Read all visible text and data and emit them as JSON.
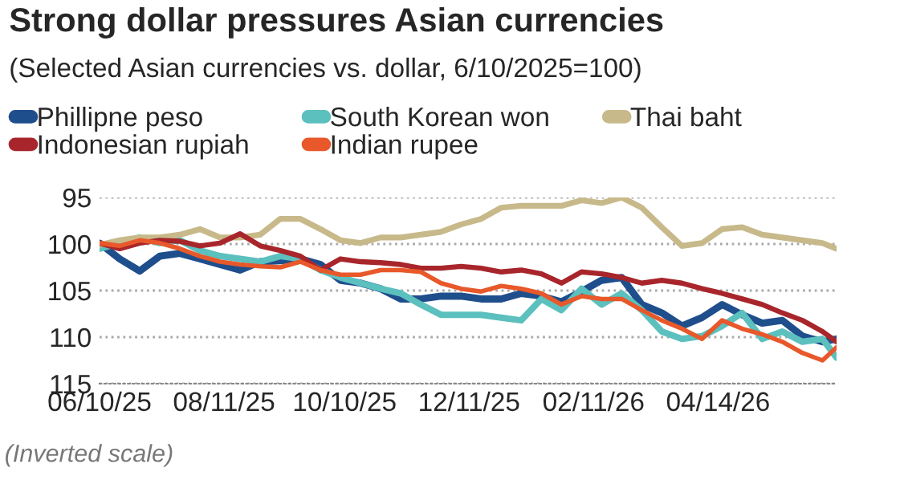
{
  "chart_data": {
    "type": "line",
    "title": "Strong dollar pressures Asian currencies",
    "subtitle": "(Selected Asian currencies vs. dollar, 6/10/2025=100)",
    "x": [
      "2025-06-10",
      "2025-06-20",
      "2025-06-30",
      "2025-07-10",
      "2025-07-20",
      "2025-07-30",
      "2025-08-09",
      "2025-08-19",
      "2025-08-29",
      "2025-09-08",
      "2025-09-18",
      "2025-09-28",
      "2025-10-08",
      "2025-10-18",
      "2025-10-28",
      "2025-11-07",
      "2025-11-17",
      "2025-11-27",
      "2025-12-07",
      "2025-12-17",
      "2025-12-27",
      "2026-01-06",
      "2026-01-16",
      "2026-01-26",
      "2026-02-05",
      "2026-02-15",
      "2026-02-25",
      "2026-03-07",
      "2026-03-17",
      "2026-03-27",
      "2026-04-06",
      "2026-04-16",
      "2026-04-26",
      "2026-05-06",
      "2026-05-16",
      "2026-05-26",
      "2026-06-05",
      "2026-06-12"
    ],
    "series": [
      {
        "name": "Phillipne peso",
        "color": "#1f4e8c",
        "values": [
          99.9,
          101.6,
          102.9,
          101.3,
          101.0,
          101.6,
          102.2,
          102.8,
          101.9,
          101.8,
          101.6,
          102.2,
          103.9,
          104.2,
          104.8,
          105.9,
          105.9,
          105.6,
          105.6,
          105.9,
          105.9,
          105.3,
          105.6,
          106.2,
          105.1,
          103.9,
          103.6,
          106.5,
          107.4,
          108.8,
          107.9,
          106.5,
          107.6,
          108.5,
          108.2,
          109.9,
          110.5,
          110.2
        ]
      },
      {
        "name": "South Korean won",
        "color": "#5bc0be",
        "values": [
          100.5,
          99.9,
          99.3,
          99.9,
          99.6,
          100.7,
          101.3,
          101.6,
          101.9,
          101.3,
          101.6,
          102.8,
          103.6,
          104.2,
          104.8,
          105.3,
          106.5,
          107.6,
          107.6,
          107.6,
          107.9,
          108.2,
          105.9,
          107.1,
          104.8,
          106.5,
          105.3,
          107.1,
          109.4,
          110.2,
          109.9,
          108.8,
          107.4,
          110.2,
          109.4,
          110.5,
          110.2,
          112.2
        ]
      },
      {
        "name": "Thai baht",
        "color": "#c8b98a",
        "values": [
          100.1,
          99.6,
          99.3,
          99.3,
          99.0,
          98.4,
          99.3,
          99.3,
          99.0,
          97.3,
          97.3,
          98.4,
          99.6,
          99.9,
          99.3,
          99.3,
          99.0,
          98.7,
          97.9,
          97.3,
          96.1,
          95.9,
          95.9,
          95.9,
          95.3,
          95.6,
          95.0,
          96.1,
          98.2,
          100.2,
          99.9,
          98.4,
          98.2,
          99.0,
          99.3,
          99.6,
          99.9,
          100.5
        ]
      },
      {
        "name": "Indonesian rupiah",
        "color": "#a8262b",
        "values": [
          99.9,
          100.5,
          99.9,
          99.6,
          99.7,
          100.2,
          99.9,
          98.9,
          100.2,
          100.7,
          101.3,
          102.8,
          101.6,
          101.9,
          102.0,
          102.2,
          102.6,
          102.6,
          102.4,
          102.6,
          103.0,
          102.8,
          103.2,
          104.2,
          103.0,
          103.2,
          103.6,
          104.2,
          103.9,
          104.2,
          104.8,
          105.3,
          105.9,
          106.5,
          107.4,
          108.2,
          109.4,
          110.5
        ]
      },
      {
        "name": "Indian rupee",
        "color": "#e8582a",
        "values": [
          99.9,
          100.2,
          99.6,
          99.9,
          100.5,
          101.3,
          101.9,
          102.2,
          102.4,
          102.5,
          101.9,
          102.8,
          103.3,
          103.3,
          102.8,
          102.8,
          103.0,
          104.2,
          104.8,
          105.1,
          104.5,
          104.8,
          105.3,
          106.5,
          105.6,
          105.9,
          105.9,
          107.1,
          108.2,
          109.1,
          110.2,
          108.2,
          109.1,
          109.7,
          110.5,
          111.7,
          112.5,
          111.1
        ]
      }
    ],
    "xlim": [
      "2025-06-10",
      "2026-06-12"
    ],
    "xticks": [
      {
        "value": "2025-06-10",
        "label": "06/10/25"
      },
      {
        "value": "2025-08-11",
        "label": "08/11/25"
      },
      {
        "value": "2025-10-10",
        "label": "10/10/25"
      },
      {
        "value": "2025-12-11",
        "label": "12/11/25"
      },
      {
        "value": "2026-02-11",
        "label": "02/11/26"
      },
      {
        "value": "2026-04-14",
        "label": "04/14/26"
      }
    ],
    "ylim": [
      115,
      95
    ],
    "yticks": [
      95,
      100,
      105,
      110,
      115
    ],
    "grid": "y",
    "legend": "top",
    "line_style": "solid",
    "marker": "none",
    "annotations": [
      "(Inverted scale)"
    ]
  }
}
